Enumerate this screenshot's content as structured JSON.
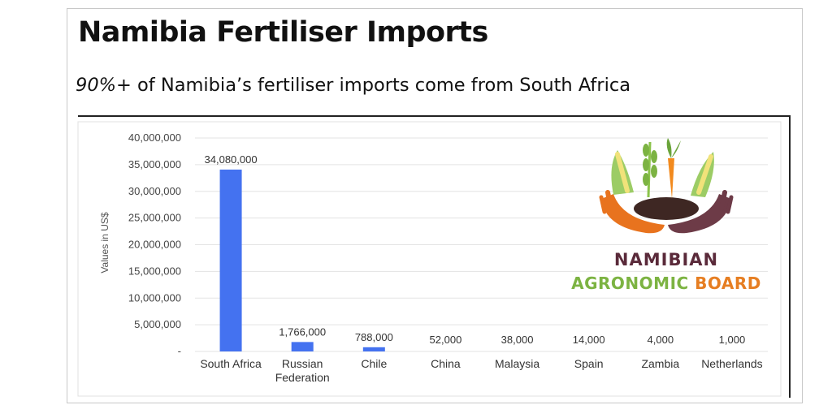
{
  "slide": {
    "title": "Namibia Fertiliser Imports",
    "subtitle_emphasis": "90%+",
    "subtitle_rest": " of Namibia’s fertiliser imports come from South Africa"
  },
  "logo": {
    "line1": "NAMIBIAN",
    "line2_word1": "AGRONOMIC",
    "line2_word2": "BOARD"
  },
  "chart_data": {
    "type": "bar",
    "categories": [
      "South Africa",
      "Russian Federation",
      "Chile",
      "China",
      "Malaysia",
      "Spain",
      "Zambia",
      "Netherlands"
    ],
    "category_lines": [
      [
        "South Africa"
      ],
      [
        "Russian",
        "Federation"
      ],
      [
        "Chile"
      ],
      [
        "China"
      ],
      [
        "Malaysia"
      ],
      [
        "Spain"
      ],
      [
        "Zambia"
      ],
      [
        "Netherlands"
      ]
    ],
    "values": [
      34080000,
      1766000,
      788000,
      52000,
      38000,
      14000,
      4000,
      1000
    ],
    "data_labels": [
      "34,080,000",
      "1,766,000",
      "788,000",
      "52,000",
      "38,000",
      "14,000",
      "4,000",
      "1,000"
    ],
    "ylabel": "Values in US$",
    "ylim": [
      0,
      40000000
    ],
    "yticks": [
      0,
      5000000,
      10000000,
      15000000,
      20000000,
      25000000,
      30000000,
      35000000,
      40000000
    ],
    "ytick_labels": [
      "-",
      "5,000,000",
      "10,000,000",
      "15,000,000",
      "20,000,000",
      "25,000,000",
      "30,000,000",
      "35,000,000",
      "40,000,000"
    ],
    "grid": true,
    "bar_color": "#4472f0",
    "grid_color": "#e3e3e3"
  }
}
